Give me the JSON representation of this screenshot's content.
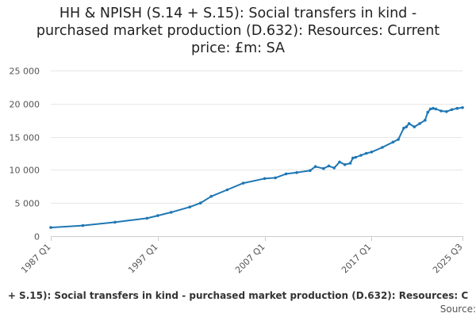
{
  "chart_data": {
    "type": "line",
    "title_lines": [
      "HH & NPISH (S.14 + S.15): Social transfers in kind -",
      "purchased market production (D.632): Resources: Current",
      "price: £m: SA"
    ],
    "legend_text": "+ S.15): Social transfers in kind - purchased market production (D.632): Resources: C",
    "source_text": "Source:",
    "xlabel": "",
    "ylabel": "",
    "x_range": [
      "1987 Q1",
      "2025 Q3"
    ],
    "ylim": [
      0,
      25000
    ],
    "y_ticks": [
      0,
      5000,
      10000,
      15000,
      20000,
      25000
    ],
    "y_tick_labels": [
      "0",
      "5 000",
      "10 000",
      "15 000",
      "20 000",
      "25 000"
    ],
    "x_ticks": [
      "1987 Q1",
      "1997 Q1",
      "2007 Q1",
      "2017 Q1",
      "2025 Q3"
    ],
    "grid": true,
    "color": "#1f77b4",
    "series": [
      {
        "x": [
          "1987 Q1",
          "1990 Q1",
          "1993 Q1",
          "1996 Q1",
          "1997 Q1",
          "1998 Q2",
          "2000 Q1",
          "2001 Q1",
          "2002 Q1",
          "2003 Q3",
          "2005 Q1",
          "2007 Q1",
          "2008 Q1",
          "2009 Q1",
          "2010 Q1",
          "2011 Q2",
          "2011 Q4",
          "2012 Q3",
          "2013 Q1",
          "2013 Q3",
          "2014 Q1",
          "2014 Q3",
          "2015 Q1",
          "2015 Q2",
          "2015 Q3",
          "2016 Q1",
          "2016 Q3",
          "2017 Q1",
          "2018 Q1",
          "2019 Q1",
          "2019 Q3",
          "2020 Q1",
          "2020 Q2",
          "2020 Q3",
          "2021 Q1",
          "2021 Q3",
          "2022 Q1",
          "2022 Q2",
          "2022 Q3",
          "2022 Q4",
          "2023 Q1",
          "2023 Q3",
          "2024 Q1",
          "2024 Q3",
          "2025 Q1",
          "2025 Q3"
        ],
        "values": [
          1300,
          1600,
          2100,
          2700,
          3100,
          3600,
          4400,
          5000,
          6000,
          7000,
          8000,
          8700,
          8800,
          9400,
          9600,
          9900,
          10500,
          10200,
          10600,
          10300,
          11200,
          10800,
          11000,
          11800,
          11900,
          12200,
          12500,
          12700,
          13400,
          14200,
          14600,
          16300,
          16500,
          17000,
          16500,
          17000,
          17500,
          18700,
          19200,
          19300,
          19200,
          18900,
          18800,
          19100,
          19300,
          19400
        ]
      }
    ]
  }
}
